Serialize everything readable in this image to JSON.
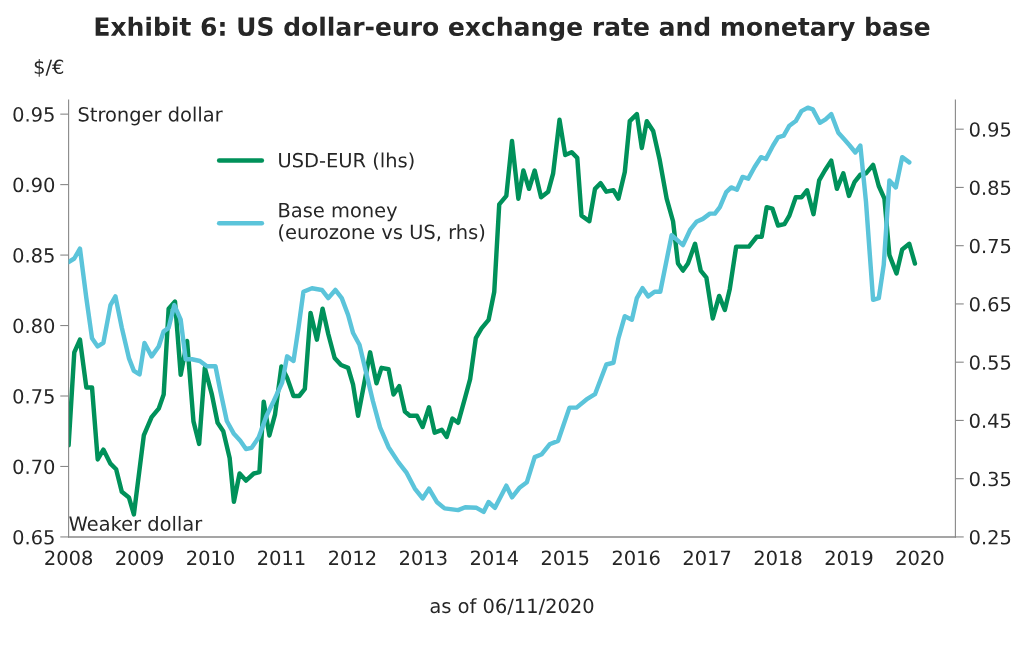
{
  "chart_data": {
    "type": "line",
    "title": "Exhibit 6: US dollar-euro exchange rate and monetary base",
    "ylabel": "$/€",
    "annotations": [
      "Stronger dollar",
      "Weaker dollar",
      "as of 06/11/2020"
    ],
    "xlim": [
      2008,
      2020.5
    ],
    "xticks": [
      2008,
      2009,
      2010,
      2011,
      2012,
      2013,
      2014,
      2015,
      2016,
      2017,
      2018,
      2019,
      2020
    ],
    "ylim": [
      0.65,
      0.96
    ],
    "yticks": [
      0.65,
      {
        "value": 0.7,
        "label": "0.70"
      },
      0.75,
      {
        "value": 0.8,
        "label": "0.80"
      },
      0.85,
      {
        "value": 0.9,
        "label": "0.90"
      },
      0.95
    ],
    "y2lim": [
      0.25,
      1.0
    ],
    "y2ticks": [
      0.25,
      0.35,
      0.45,
      0.55,
      0.65,
      0.75,
      0.85,
      0.95
    ],
    "grid": false,
    "legend": "top left",
    "line_style": "solid",
    "marker": "none",
    "series": [
      {
        "name": "USD-EUR (lhs)",
        "color": "#00915a",
        "x": [
          2008.0,
          2008.08,
          2008.16,
          2008.25,
          2008.33,
          2008.41,
          2008.49,
          2008.59,
          2008.67,
          2008.75,
          2008.85,
          2008.92,
          2009.06,
          2009.17,
          2009.27,
          2009.34,
          2009.41,
          2009.5,
          2009.58,
          2009.67,
          2009.76,
          2009.84,
          2009.92,
          2010.02,
          2010.1,
          2010.18,
          2010.27,
          2010.33,
          2010.41,
          2010.5,
          2010.61,
          2010.69,
          2010.75,
          2010.83,
          2010.91,
          2011.0,
          2011.08,
          2011.17,
          2011.25,
          2011.33,
          2011.41,
          2011.5,
          2011.58,
          2011.66,
          2011.75,
          2011.84,
          2011.94,
          2012.01,
          2012.08,
          2012.25,
          2012.34,
          2012.41,
          2012.51,
          2012.58,
          2012.66,
          2012.74,
          2012.81,
          2012.91,
          2012.99,
          2013.08,
          2013.16,
          2013.26,
          2013.33,
          2013.41,
          2013.49,
          2013.59,
          2013.66,
          2013.74,
          2013.82,
          2013.92,
          2014.0,
          2014.07,
          2014.17,
          2014.25,
          2014.34,
          2014.41,
          2014.49,
          2014.57,
          2014.66,
          2014.76,
          2014.83,
          2014.92,
          2015.0,
          2015.09,
          2015.17,
          2015.23,
          2015.34,
          2015.42,
          2015.5,
          2015.58,
          2015.68,
          2015.75,
          2015.84,
          2015.91,
          2016.01,
          2016.08,
          2016.15,
          2016.24,
          2016.33,
          2016.43,
          2016.52,
          2016.59,
          2016.66,
          2016.73,
          2016.83,
          2016.91,
          2016.99,
          2017.08,
          2017.17,
          2017.25,
          2017.32,
          2017.41,
          2017.51,
          2017.59,
          2017.7,
          2017.77,
          2017.84,
          2017.92,
          2018.0,
          2018.09,
          2018.16,
          2018.25,
          2018.33,
          2018.41,
          2018.5,
          2018.58,
          2018.66,
          2018.75,
          2018.83,
          2018.92,
          2019.0,
          2019.08,
          2019.16,
          2019.24,
          2019.34,
          2019.42,
          2019.5,
          2019.57,
          2019.67,
          2019.75,
          2019.85,
          2019.93
        ],
        "values": [
          0.715,
          0.781,
          0.79,
          0.756,
          0.756,
          0.705,
          0.712,
          0.702,
          0.698,
          0.682,
          0.678,
          0.666,
          0.722,
          0.735,
          0.741,
          0.751,
          0.812,
          0.817,
          0.765,
          0.789,
          0.732,
          0.716,
          0.77,
          0.751,
          0.731,
          0.725,
          0.706,
          0.675,
          0.695,
          0.69,
          0.695,
          0.696,
          0.746,
          0.722,
          0.737,
          0.771,
          0.763,
          0.75,
          0.75,
          0.755,
          0.809,
          0.79,
          0.812,
          0.794,
          0.777,
          0.772,
          0.77,
          0.758,
          0.736,
          0.781,
          0.759,
          0.77,
          0.769,
          0.751,
          0.757,
          0.739,
          0.736,
          0.736,
          0.728,
          0.742,
          0.724,
          0.726,
          0.721,
          0.734,
          0.731,
          0.749,
          0.762,
          0.791,
          0.798,
          0.804,
          0.824,
          0.886,
          0.892,
          0.931,
          0.89,
          0.91,
          0.897,
          0.91,
          0.891,
          0.895,
          0.908,
          0.946,
          0.921,
          0.923,
          0.919,
          0.878,
          0.874,
          0.897,
          0.901,
          0.895,
          0.896,
          0.89,
          0.909,
          0.945,
          0.95,
          0.926,
          0.945,
          0.938,
          0.918,
          0.89,
          0.874,
          0.844,
          0.839,
          0.844,
          0.858,
          0.839,
          0.834,
          0.805,
          0.821,
          0.811,
          0.826,
          0.856,
          0.856,
          0.856,
          0.863,
          0.863,
          0.884,
          0.883,
          0.871,
          0.872,
          0.878,
          0.891,
          0.891,
          0.896,
          0.879,
          0.903,
          0.91,
          0.917,
          0.897,
          0.908,
          0.892,
          0.902,
          0.907,
          0.908,
          0.914,
          0.899,
          0.89,
          0.85,
          0.837,
          0.854,
          0.858,
          0.844
        ]
      },
      {
        "name": "Base money\n(eurozone vs US, rhs)",
        "color": "#5bc4da",
        "axis": "y2",
        "x": [
          2008.0,
          2008.08,
          2008.16,
          2008.25,
          2008.33,
          2008.41,
          2008.49,
          2008.59,
          2008.66,
          2008.75,
          2008.85,
          2008.92,
          2009.0,
          2009.07,
          2009.17,
          2009.27,
          2009.34,
          2009.41,
          2009.49,
          2009.58,
          2009.65,
          2009.74,
          2009.85,
          2009.95,
          2010.07,
          2010.14,
          2010.23,
          2010.33,
          2010.42,
          2010.5,
          2010.58,
          2010.68,
          2010.79,
          2010.89,
          2011.01,
          2011.08,
          2011.17,
          2011.24,
          2011.31,
          2011.43,
          2011.57,
          2011.66,
          2011.76,
          2011.85,
          2011.94,
          2012.01,
          2012.1,
          2012.2,
          2012.29,
          2012.39,
          2012.51,
          2012.65,
          2012.76,
          2012.88,
          2012.99,
          2013.08,
          2013.19,
          2013.3,
          2013.49,
          2013.59,
          2013.75,
          2013.85,
          2013.92,
          2014.01,
          2014.17,
          2014.25,
          2014.36,
          2014.46,
          2014.57,
          2014.67,
          2014.78,
          2014.9,
          2015.06,
          2015.16,
          2015.3,
          2015.42,
          2015.58,
          2015.68,
          2015.75,
          2015.84,
          2015.94,
          2016.01,
          2016.09,
          2016.17,
          2016.26,
          2016.34,
          2016.5,
          2016.66,
          2016.76,
          2016.85,
          2016.94,
          2017.04,
          2017.11,
          2017.18,
          2017.27,
          2017.34,
          2017.42,
          2017.5,
          2017.58,
          2017.67,
          2017.76,
          2017.83,
          2017.93,
          2018.0,
          2018.08,
          2018.16,
          2018.25,
          2018.33,
          2018.42,
          2018.49,
          2018.59,
          2018.67,
          2018.75,
          2018.85,
          2018.93,
          2019.01,
          2019.09,
          2019.16,
          2019.24,
          2019.34,
          2019.42,
          2019.49,
          2019.57,
          2019.66,
          2019.75,
          2019.85
        ],
        "values": [
          0.722,
          0.728,
          0.745,
          0.66,
          0.591,
          0.577,
          0.583,
          0.648,
          0.663,
          0.609,
          0.557,
          0.535,
          0.529,
          0.583,
          0.56,
          0.577,
          0.603,
          0.609,
          0.648,
          0.623,
          0.555,
          0.555,
          0.552,
          0.543,
          0.543,
          0.5,
          0.449,
          0.427,
          0.415,
          0.401,
          0.403,
          0.421,
          0.458,
          0.483,
          0.515,
          0.56,
          0.552,
          0.609,
          0.671,
          0.677,
          0.674,
          0.66,
          0.674,
          0.66,
          0.631,
          0.6,
          0.58,
          0.529,
          0.483,
          0.438,
          0.404,
          0.378,
          0.361,
          0.333,
          0.316,
          0.333,
          0.31,
          0.299,
          0.296,
          0.301,
          0.3,
          0.293,
          0.31,
          0.3,
          0.338,
          0.318,
          0.335,
          0.344,
          0.387,
          0.392,
          0.409,
          0.415,
          0.472,
          0.472,
          0.486,
          0.495,
          0.546,
          0.549,
          0.591,
          0.629,
          0.623,
          0.66,
          0.677,
          0.663,
          0.671,
          0.671,
          0.768,
          0.751,
          0.777,
          0.791,
          0.796,
          0.805,
          0.805,
          0.816,
          0.842,
          0.85,
          0.846,
          0.868,
          0.865,
          0.885,
          0.902,
          0.899,
          0.922,
          0.936,
          0.939,
          0.956,
          0.964,
          0.981,
          0.987,
          0.984,
          0.961,
          0.967,
          0.976,
          0.944,
          0.933,
          0.922,
          0.91,
          0.922,
          0.825,
          0.657,
          0.66,
          0.717,
          0.862,
          0.85,
          0.902,
          0.893
        ]
      }
    ]
  }
}
